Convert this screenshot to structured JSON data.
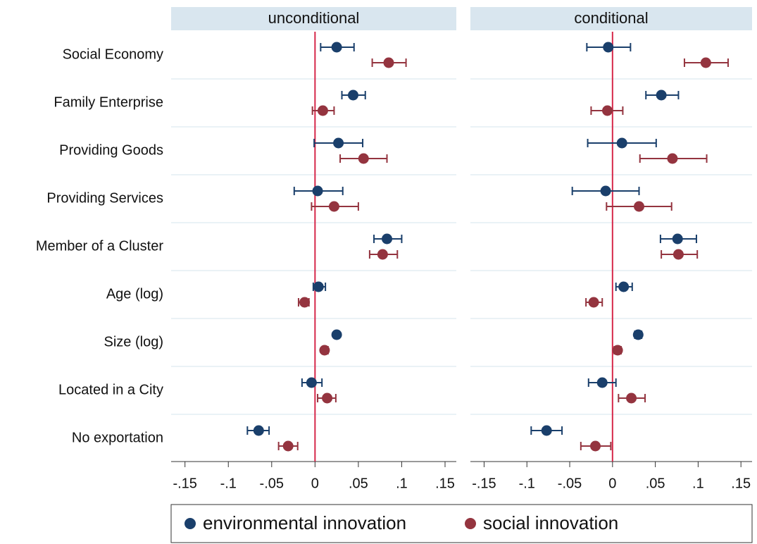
{
  "chart_data": {
    "type": "coefplot",
    "categories": [
      "Social Economy",
      "Family Enterprise",
      "Providing Goods",
      "Providing Services",
      "Member of a Cluster",
      "Age (log)",
      "Size (log)",
      "Located in a City",
      "No exportation"
    ],
    "xlim": [
      -0.166,
      0.163
    ],
    "xticks": [
      {
        "value": -0.15,
        "label": "-.15"
      },
      {
        "value": -0.1,
        "label": "-.1"
      },
      {
        "value": -0.05,
        "label": "-.05"
      },
      0,
      {
        "value": 0.05,
        "label": ".05"
      },
      {
        "value": 0.1,
        "label": ".1"
      },
      {
        "value": 0.15,
        "label": ".15"
      }
    ],
    "reference_line": 0,
    "reference_color": "#d6274a",
    "legend": [
      {
        "name": "environmental innovation",
        "color": "#1a3f6b"
      },
      {
        "name": "social innovation",
        "color": "#94343f"
      }
    ],
    "panels": [
      {
        "title": "unconditional",
        "series": [
          {
            "values": [
              0.025,
              0.044,
              0.027,
              0.003,
              0.083,
              0.004,
              0.025,
              -0.004,
              -0.065
            ],
            "lower": [
              0.0065,
              0.031,
              -0.001,
              -0.024,
              0.068,
              -0.002,
              0.022,
              -0.015,
              -0.078
            ],
            "upper": [
              0.045,
              0.058,
              0.055,
              0.032,
              0.1,
              0.012,
              0.028,
              0.008,
              -0.053
            ]
          },
          {
            "values": [
              0.085,
              0.009,
              0.056,
              0.022,
              0.078,
              -0.012,
              0.011,
              0.014,
              -0.031
            ],
            "lower": [
              0.066,
              -0.003,
              0.029,
              -0.004,
              0.063,
              -0.019,
              0.009,
              0.003,
              -0.042
            ],
            "upper": [
              0.105,
              0.022,
              0.083,
              0.05,
              0.095,
              -0.007,
              0.015,
              0.024,
              -0.02
            ]
          }
        ]
      },
      {
        "title": "conditional",
        "series": [
          {
            "values": [
              -0.005,
              0.057,
              0.011,
              -0.008,
              0.076,
              0.013,
              0.03,
              -0.012,
              -0.077
            ],
            "lower": [
              -0.03,
              0.039,
              -0.029,
              -0.047,
              0.056,
              0.004,
              0.026,
              -0.028,
              -0.095
            ],
            "upper": [
              0.021,
              0.077,
              0.051,
              0.031,
              0.098,
              0.023,
              0.034,
              0.004,
              -0.059
            ]
          },
          {
            "values": [
              0.109,
              -0.006,
              0.07,
              0.031,
              0.077,
              -0.022,
              0.006,
              0.022,
              -0.02
            ],
            "lower": [
              0.084,
              -0.025,
              0.032,
              -0.007,
              0.057,
              -0.031,
              0.002,
              0.007,
              -0.037
            ],
            "upper": [
              0.135,
              0.012,
              0.11,
              0.069,
              0.099,
              -0.012,
              0.01,
              0.038,
              -0.002
            ]
          }
        ]
      }
    ]
  }
}
